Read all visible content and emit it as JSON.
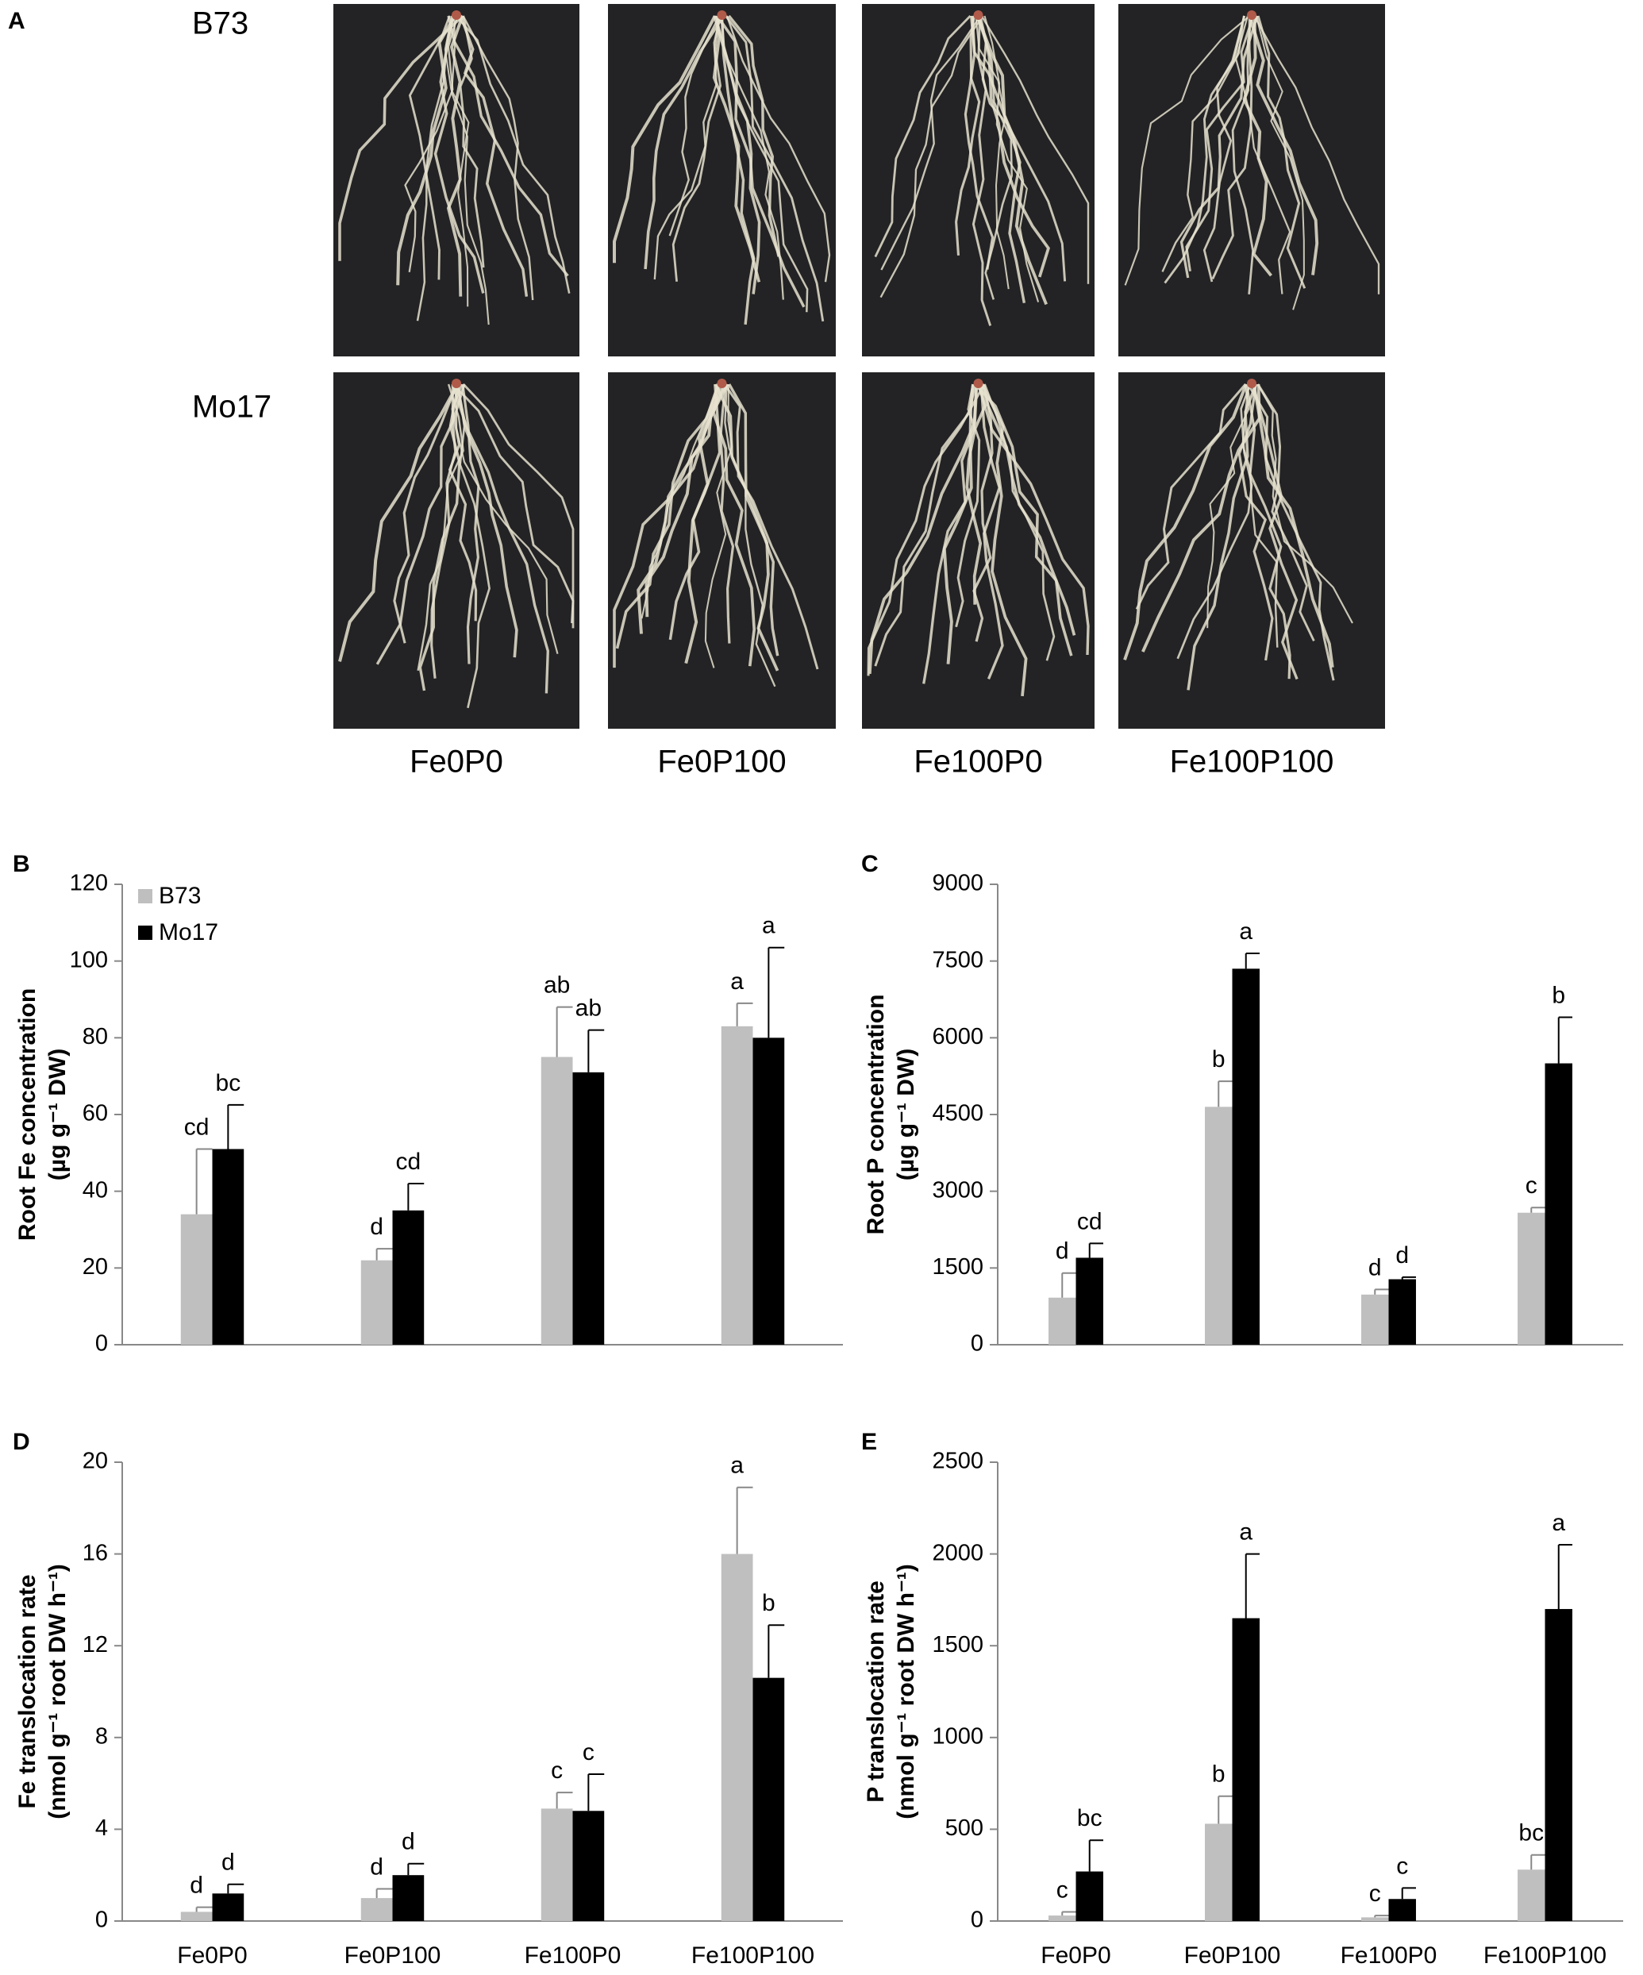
{
  "photos": {
    "label": "A",
    "rows": [
      "B73",
      "Mo17"
    ],
    "columns": [
      "Fe0P0",
      "Fe0P100",
      "Fe100P0",
      "Fe100P100"
    ]
  },
  "chart_data": [
    {
      "type": "bar",
      "label": "B",
      "ylabel": [
        "Root Fe concentration",
        "(µg g⁻¹ DW)"
      ],
      "ylim": [
        0,
        120
      ],
      "yticks": [
        0,
        20,
        40,
        60,
        80,
        100,
        120
      ],
      "legend": "top-left",
      "series": [
        {
          "name": "B73",
          "color": "#bfbfbf",
          "values": [
            34,
            22,
            75,
            83
          ],
          "errors": [
            17,
            3,
            13,
            6
          ],
          "letters": [
            "cd",
            "d",
            "ab",
            "a"
          ]
        },
        {
          "name": "Mo17",
          "color": "#000000",
          "values": [
            51,
            35,
            71,
            80
          ],
          "errors": [
            11.5,
            7,
            11,
            23.5
          ],
          "letters": [
            "bc",
            "cd",
            "ab",
            "a"
          ]
        }
      ]
    },
    {
      "type": "bar",
      "label": "C",
      "ylabel": [
        "Root P concentration",
        "(µg g⁻¹ DW)"
      ],
      "ylim": [
        0,
        9000
      ],
      "yticks": [
        0,
        1500,
        3000,
        4500,
        6000,
        7500,
        9000
      ],
      "series": [
        {
          "color": "#bfbfbf",
          "values": [
            920,
            4650,
            980,
            2580
          ],
          "errors": [
            480,
            500,
            100,
            100
          ],
          "letters": [
            "d",
            "b",
            "d",
            "c"
          ]
        },
        {
          "color": "#000000",
          "values": [
            1700,
            7350,
            1280,
            5500
          ],
          "errors": [
            280,
            300,
            40,
            900
          ],
          "letters": [
            "cd",
            "a",
            "d",
            "b"
          ]
        }
      ]
    },
    {
      "type": "bar",
      "label": "D",
      "ylabel": [
        "Fe translocation rate",
        "(nmol g⁻¹ root DW h⁻¹)"
      ],
      "categories": [
        "Fe0P0",
        "Fe0P100",
        "Fe100P0",
        "Fe100P100"
      ],
      "ylim": [
        0,
        20
      ],
      "yticks": [
        0,
        4,
        8,
        12,
        16,
        20
      ],
      "series": [
        {
          "color": "#bfbfbf",
          "values": [
            0.4,
            1.0,
            4.9,
            16
          ],
          "errors": [
            0.2,
            0.4,
            0.7,
            2.9
          ],
          "letters": [
            "d",
            "d",
            "c",
            "a"
          ]
        },
        {
          "color": "#000000",
          "values": [
            1.2,
            2.0,
            4.8,
            10.6
          ],
          "errors": [
            0.4,
            0.5,
            1.6,
            2.3
          ],
          "letters": [
            "d",
            "d",
            "c",
            "b"
          ]
        }
      ]
    },
    {
      "type": "bar",
      "label": "E",
      "ylabel": [
        "P translocation rate",
        "(nmol g⁻¹ root DW h⁻¹)"
      ],
      "categories": [
        "Fe0P0",
        "Fe0P100",
        "Fe100P0",
        "Fe100P100"
      ],
      "ylim": [
        0,
        2500
      ],
      "yticks": [
        0,
        500,
        1000,
        1500,
        2000,
        2500
      ],
      "series": [
        {
          "color": "#bfbfbf",
          "values": [
            30,
            530,
            20,
            280
          ],
          "errors": [
            20,
            150,
            10,
            80
          ],
          "letters": [
            "c",
            "b",
            "c",
            "bc"
          ]
        },
        {
          "color": "#000000",
          "values": [
            270,
            1650,
            120,
            1700
          ],
          "errors": [
            170,
            350,
            60,
            350
          ],
          "letters": [
            "bc",
            "a",
            "c",
            "a"
          ]
        }
      ]
    }
  ]
}
